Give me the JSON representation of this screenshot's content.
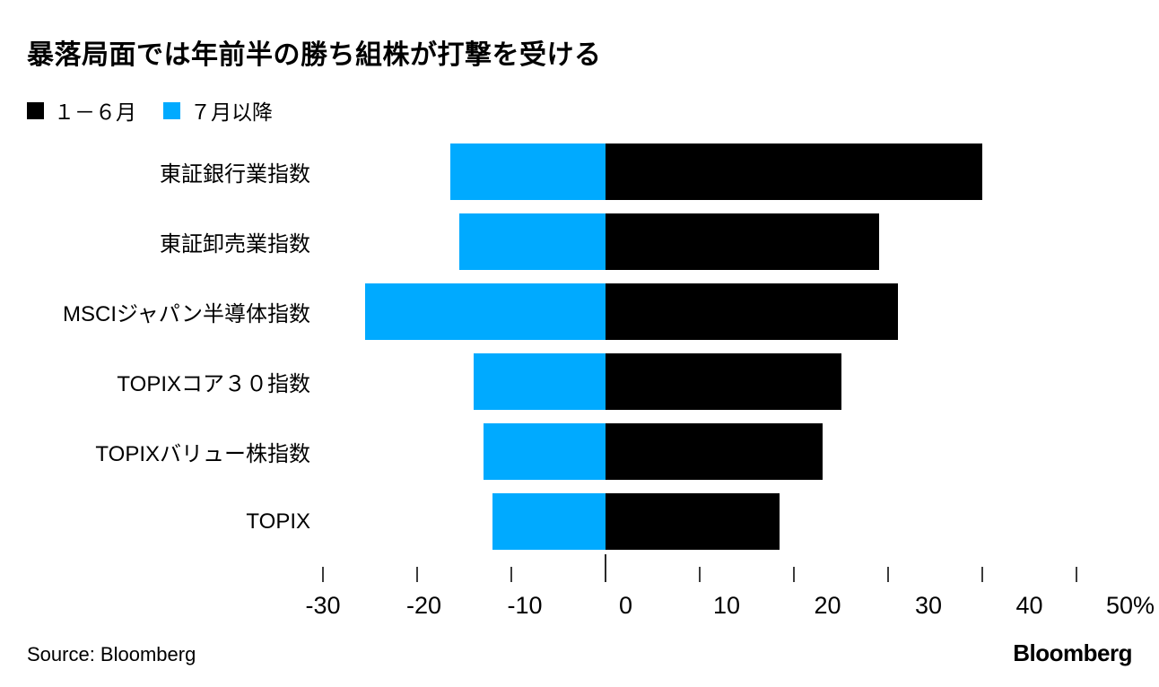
{
  "title": "暴落局面では年前半の勝ち組株が打撃を受ける",
  "legend": [
    {
      "label": "１－６月",
      "color": "#000000"
    },
    {
      "label": "７月以降",
      "color": "#00aaff"
    }
  ],
  "chart_data": {
    "type": "bar",
    "orientation": "horizontal",
    "stacked_at_zero": true,
    "categories": [
      "東証銀行業指数",
      "東証卸売業指数",
      "MSCIジャパン半導体指数",
      "TOPIXコア３０指数",
      "TOPIXバリュー株指数",
      "TOPIX"
    ],
    "series": [
      {
        "name": "１－６月",
        "color": "#000000",
        "values": [
          40,
          29,
          31,
          25,
          23,
          18.5
        ]
      },
      {
        "name": "７月以降",
        "color": "#00aaff",
        "values": [
          -16.5,
          -15.5,
          -25.5,
          -14,
          -13,
          -12
        ]
      }
    ],
    "unit": "%",
    "xlim": [
      -30,
      50
    ],
    "xticks": [
      -30,
      -20,
      -10,
      0,
      10,
      20,
      30,
      40,
      50
    ],
    "xtick_labels": [
      "-30",
      "-20",
      "-10",
      "0",
      "10",
      "20",
      "30",
      "40",
      "50%"
    ],
    "grid": false,
    "legend_position": "top-left"
  },
  "footer": {
    "source": "Source: Bloomberg",
    "brand": "Bloomberg"
  }
}
